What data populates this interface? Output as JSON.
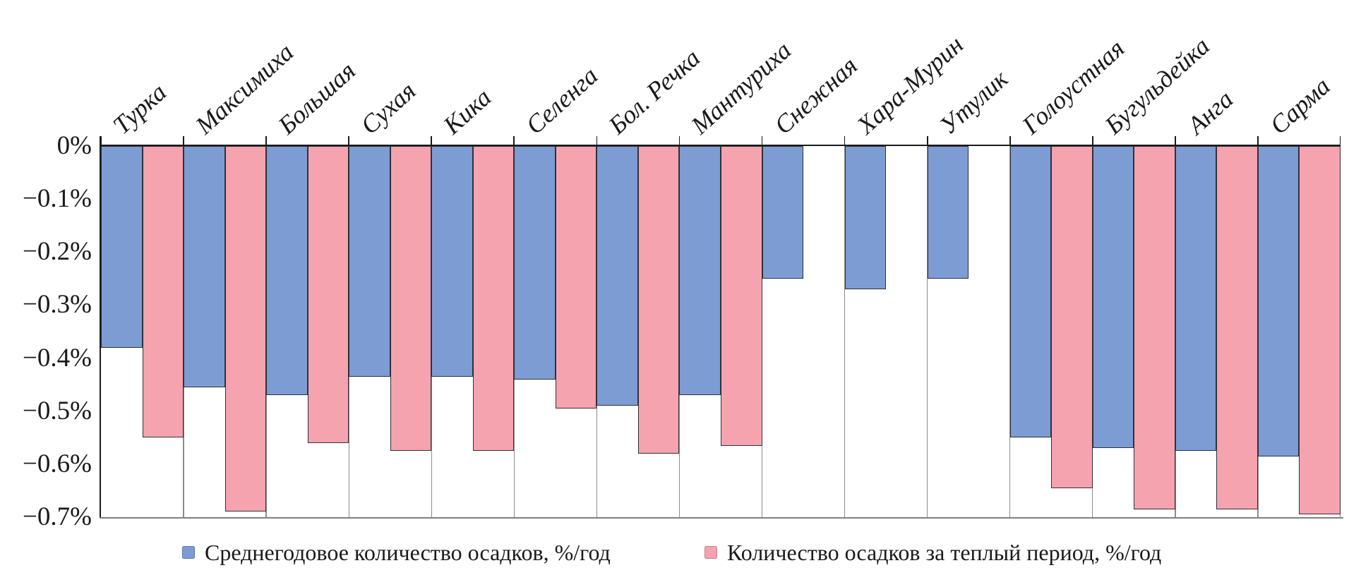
{
  "chart_data": {
    "type": "bar",
    "title": "",
    "categories": [
      "Турка",
      "Максимиха",
      "Большая",
      "Сухая",
      "Кика",
      "Селенга",
      "Бол. Речка",
      "Мантуриха",
      "Снежная",
      "Хара-Мурин",
      "Утулик",
      "Голоустная",
      "Бугульдейка",
      "Анга",
      "Сарма"
    ],
    "series": [
      {
        "name": "Среднегодовое количество осадков, %/год",
        "color": "#7d9cd3",
        "swatch_border": "#5a7ab2",
        "values": [
          -0.38,
          -0.455,
          -0.47,
          -0.435,
          -0.435,
          -0.44,
          -0.49,
          -0.47,
          -0.25,
          -0.27,
          -0.25,
          -0.55,
          -0.57,
          -0.575,
          -0.585
        ]
      },
      {
        "name": "Количество осадков за теплый период, %/год",
        "color": "#f5a3ae",
        "swatch_border": "#c9808d",
        "values": [
          -0.55,
          -0.69,
          -0.56,
          -0.575,
          -0.575,
          -0.495,
          -0.58,
          -0.565,
          null,
          null,
          null,
          -0.645,
          -0.685,
          -0.685,
          -0.695
        ]
      }
    ],
    "xlabel": "",
    "ylabel": "",
    "ylim": [
      -0.7,
      0
    ],
    "ytick_step": 0.1,
    "ytick_labels": [
      "0%",
      "−0.1%",
      "−0.2%",
      "−0.3%",
      "−0.4%",
      "−0.5%",
      "−0.6%",
      "−0.7%"
    ],
    "grid": "vertical category separators only",
    "legend_position": "bottom",
    "bar_border_color": "#2e3138",
    "axis_color": "#1a1a1a",
    "separator_color": "#8c8c8c"
  }
}
